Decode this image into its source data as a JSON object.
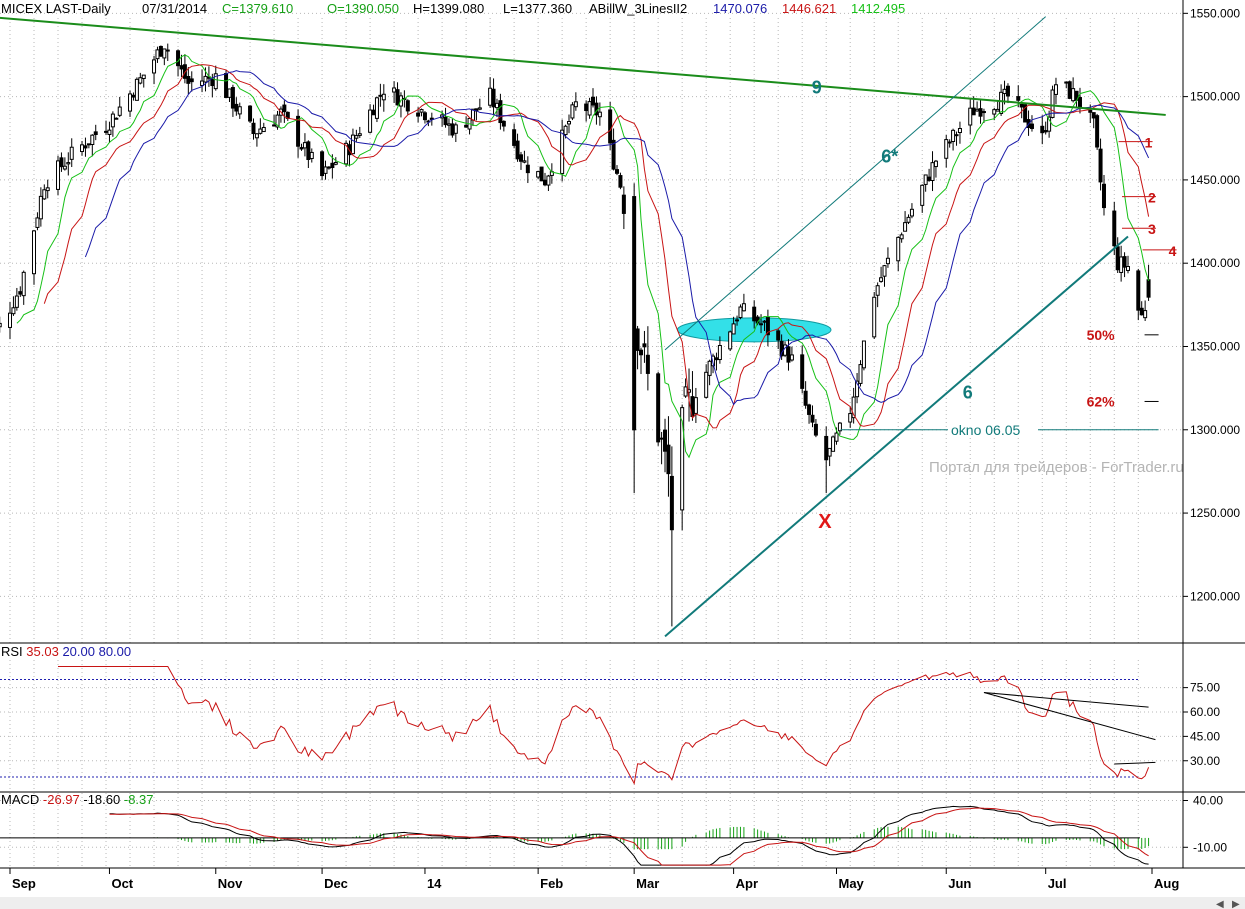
{
  "header": {
    "symbol": "MICEX LAST-Daily",
    "date": "07/31/2014",
    "close": "C=1379.610",
    "open": "O=1390.050",
    "high": "H=1399.080",
    "low": "L=1377.360",
    "indicator": "ABillW_3LinesII2",
    "line_values": [
      "1470.076",
      "1446.621",
      "1412.495"
    ]
  },
  "colors": {
    "candle": "#000000",
    "blue_ma": "#1a1aa8",
    "red_ma": "#c81414",
    "green_ma": "#16c016",
    "trend": "#1a8c1a",
    "channel": "#117a7a",
    "ellipse": "#33e0e8",
    "rsi": "#c81414",
    "grid": "#b8b8b8",
    "dotted_level": "#2020b0"
  },
  "watermark": "Портал для трейдеров - ForTrader.ru",
  "chart_data": [
    {
      "type": "candlestick",
      "title": "MICEX LAST-Daily",
      "price_ticks": [
        "1550.000",
        "1500.000",
        "1450.000",
        "1400.000",
        "1350.000",
        "1300.000",
        "1250.000",
        "1200.000"
      ],
      "ylim": [
        1172,
        1558
      ],
      "x_labels": [
        "Sep",
        "Oct",
        "Nov",
        "Dec",
        "14",
        "Feb",
        "Mar",
        "Apr",
        "May",
        "Jun",
        "Jul",
        "Aug"
      ],
      "anchors": [
        {
          "date": "2013-08-30",
          "close": 1362
        },
        {
          "date": "2013-09-05",
          "close": 1385
        },
        {
          "date": "2013-09-12",
          "close": 1448
        },
        {
          "date": "2013-09-20",
          "close": 1465
        },
        {
          "date": "2013-10-01",
          "close": 1485
        },
        {
          "date": "2013-10-10",
          "close": 1510
        },
        {
          "date": "2013-10-17",
          "close": 1532
        },
        {
          "date": "2013-10-24",
          "close": 1508
        },
        {
          "date": "2013-11-01",
          "close": 1512
        },
        {
          "date": "2013-11-12",
          "close": 1478
        },
        {
          "date": "2013-11-20",
          "close": 1490
        },
        {
          "date": "2013-12-02",
          "close": 1452
        },
        {
          "date": "2013-12-10",
          "close": 1470
        },
        {
          "date": "2013-12-20",
          "close": 1505
        },
        {
          "date": "2014-01-10",
          "close": 1480
        },
        {
          "date": "2014-01-20",
          "close": 1500
        },
        {
          "date": "2014-01-30",
          "close": 1460
        },
        {
          "date": "2014-02-05",
          "close": 1450
        },
        {
          "date": "2014-02-14",
          "close": 1495
        },
        {
          "date": "2014-02-21",
          "close": 1490
        },
        {
          "date": "2014-02-28",
          "close": 1440
        },
        {
          "date": "2014-03-03",
          "close": 1370
        },
        {
          "date": "2014-03-10",
          "close": 1300
        },
        {
          "date": "2014-03-14",
          "close": 1262
        },
        {
          "date": "2014-03-18",
          "close": 1312
        },
        {
          "date": "2014-03-28",
          "close": 1350
        },
        {
          "date": "2014-04-03",
          "close": 1372
        },
        {
          "date": "2014-04-10",
          "close": 1362
        },
        {
          "date": "2014-04-18",
          "close": 1342
        },
        {
          "date": "2014-04-24",
          "close": 1300
        },
        {
          "date": "2014-04-28",
          "close": 1282
        },
        {
          "date": "2014-05-05",
          "close": 1312
        },
        {
          "date": "2014-05-12",
          "close": 1382
        },
        {
          "date": "2014-05-20",
          "close": 1420
        },
        {
          "date": "2014-05-30",
          "close": 1462
        },
        {
          "date": "2014-06-10",
          "close": 1492
        },
        {
          "date": "2014-06-20",
          "close": 1500
        },
        {
          "date": "2014-06-30",
          "close": 1475
        },
        {
          "date": "2014-07-04",
          "close": 1508
        },
        {
          "date": "2014-07-10",
          "close": 1500
        },
        {
          "date": "2014-07-15",
          "close": 1482
        },
        {
          "date": "2014-07-18",
          "close": 1432
        },
        {
          "date": "2014-07-22",
          "close": 1400
        },
        {
          "date": "2014-07-25",
          "close": 1398
        },
        {
          "date": "2014-07-28",
          "close": 1372
        },
        {
          "date": "2014-07-29",
          "close": 1368
        },
        {
          "date": "2014-07-31",
          "close": 1380
        }
      ],
      "last_bar": {
        "date": "2014-07-31",
        "open": 1390.05,
        "high": 1399.08,
        "low": 1377.36,
        "close": 1379.61
      },
      "moving_averages": [
        {
          "color": "blue",
          "last_value": 1470.076
        },
        {
          "color": "red",
          "last_value": 1446.621
        },
        {
          "color": "green",
          "last_value": 1412.495
        }
      ],
      "annotations": {
        "line_9": {
          "label": "9",
          "from": {
            "date": "2013-08-26",
            "price": 1548
          },
          "to": {
            "date": "2014-08-05",
            "price": 1489
          }
        },
        "line_6": {
          "label": "6",
          "from": {
            "date": "2014-03-12",
            "price": 1176
          },
          "to": {
            "date": "2014-07-25",
            "price": 1416
          }
        },
        "line_6star": {
          "label": "6*",
          "from": {
            "date": "2014-03-12",
            "price": 1348
          },
          "to": {
            "date": "2014-07-01",
            "price": 1548
          }
        },
        "x_label": {
          "label": "X",
          "date": "2014-04-28",
          "price": 1247
        },
        "fib": [
          {
            "label": "50%",
            "price": 1357,
            "from": "2014-07-24",
            "to": "2014-07-31"
          },
          {
            "label": "62%",
            "price": 1317,
            "from": "2014-07-24",
            "to": "2014-07-31"
          }
        ],
        "gap_line": {
          "label": "okno 06.05",
          "price": 1300,
          "from": "2014-05-01",
          "to": "2014-07-31"
        },
        "waves": [
          {
            "label": "1",
            "price": 1473,
            "date": "2014-07-24"
          },
          {
            "label": "2",
            "price": 1440,
            "date": "2014-07-25"
          },
          {
            "label": "3",
            "price": 1421,
            "date": "2014-07-25"
          },
          {
            "label": "4",
            "price": 1408,
            "date": "2014-07-31"
          }
        ],
        "ellipse": {
          "center_date": "2014-04-07",
          "center_price": 1360,
          "half_width_days": 16,
          "half_height_price": 6
        }
      }
    },
    {
      "type": "line",
      "title": "RSI",
      "values_label": [
        "35.03",
        "20.00",
        "80.00"
      ],
      "ticks": [
        "75.00",
        "60.00",
        "45.00",
        "30.00"
      ],
      "ylim": [
        12,
        92
      ],
      "levels": [
        20,
        80
      ],
      "last_value": 35.03,
      "divergence_lines": [
        {
          "from": {
            "date": "2014-06-13",
            "value": 72
          },
          "to": {
            "date": "2014-07-31",
            "value": 63
          }
        },
        {
          "from": {
            "date": "2014-06-13",
            "value": 72
          },
          "to": {
            "date": "2014-08-02",
            "value": 43
          }
        },
        {
          "from": {
            "date": "2014-07-21",
            "value": 28
          },
          "to": {
            "date": "2014-08-02",
            "value": 29
          }
        }
      ]
    },
    {
      "type": "line",
      "title": "MACD",
      "values_label": [
        "-26.97",
        "-18.60",
        "-8.37"
      ],
      "ticks": [
        "40.00",
        "-10.00"
      ],
      "ylim": [
        -30,
        48
      ],
      "last_values": {
        "macd": -26.97,
        "signal": -18.6,
        "histogram": -8.37
      }
    }
  ]
}
